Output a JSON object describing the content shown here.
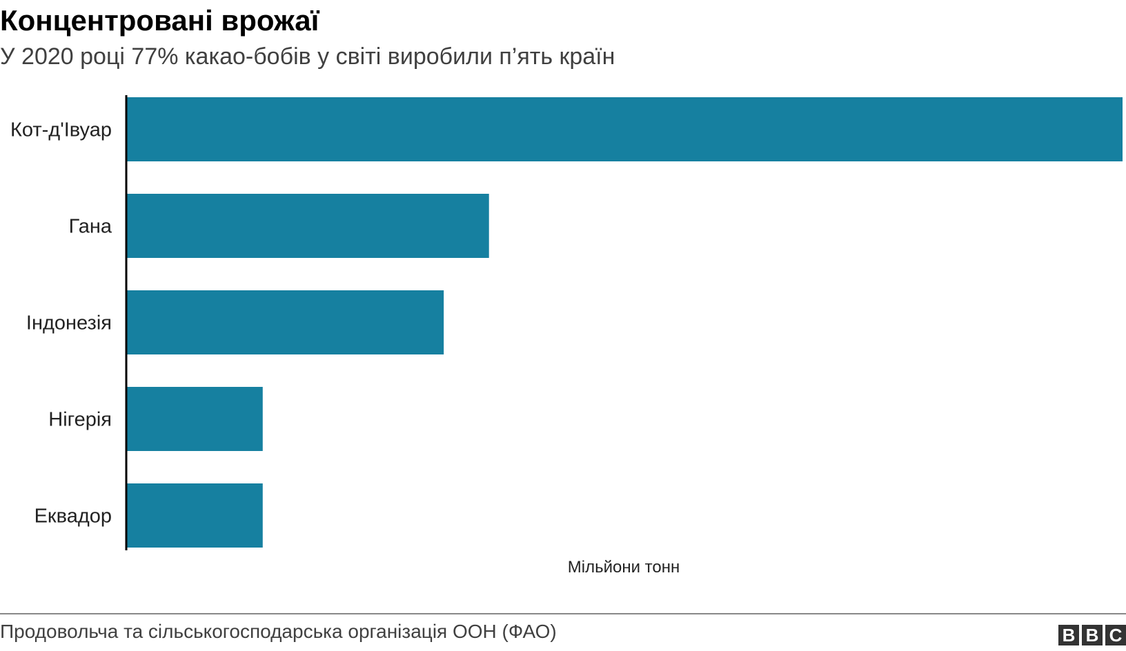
{
  "header": {
    "title": "Концентровані врожаї",
    "subtitle": "У 2020 році 77% какао-бобів у світі виробили п’ять країн"
  },
  "chart_data": {
    "type": "bar",
    "orientation": "horizontal",
    "categories": [
      "Кот-д'Івуар",
      "Гана",
      "Індонезія",
      "Нігерія",
      "Еквадор"
    ],
    "values": [
      2.2,
      0.8,
      0.7,
      0.3,
      0.3
    ],
    "xlabel": "Мільйони тонн",
    "xlim": [
      0,
      2.2
    ],
    "bar_color": "#1680a0",
    "grid": false
  },
  "footer": {
    "source": "Продовольча та сільськогосподарська організація ООН (ФАО)",
    "logo": [
      "B",
      "B",
      "C"
    ]
  }
}
